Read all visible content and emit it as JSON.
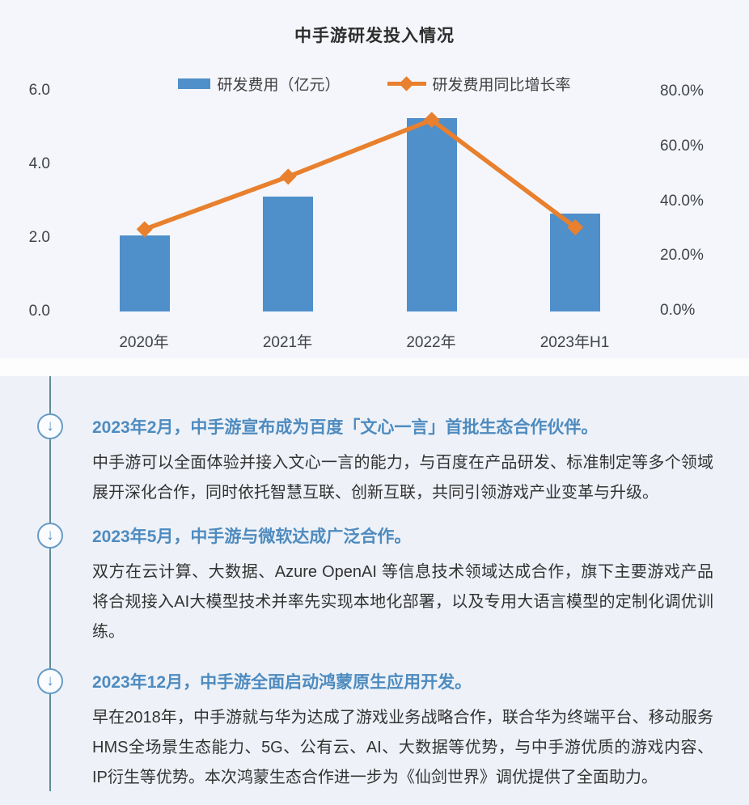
{
  "chart_data": {
    "type": "bar+line",
    "title": "中手游研发投入情况",
    "categories": [
      "2020年",
      "2021年",
      "2022年",
      "2023年H1"
    ],
    "series": [
      {
        "name": "研发费用（亿元）",
        "type": "bar",
        "axis": "left",
        "values": [
          2.06,
          3.11,
          5.26,
          2.66
        ],
        "color": "#4f8fca"
      },
      {
        "name": "研发费用同比增长率",
        "type": "line",
        "axis": "right",
        "values": [
          29.7,
          48.9,
          69.6,
          30.4
        ],
        "color": "#e8802e"
      }
    ],
    "left_axis": {
      "ticks": [
        "6.0",
        "4.0",
        "2.0",
        "0.0"
      ],
      "min": 0,
      "max": 6
    },
    "right_axis": {
      "ticks": [
        "80.0%",
        "60.0%",
        "40.0%",
        "20.0%",
        "0.0%"
      ],
      "min": 0,
      "max": 80
    },
    "grid": false,
    "legend_position": "top"
  },
  "icons": {
    "arrow_down": "↓"
  },
  "timeline": {
    "items": [
      {
        "heading": "2023年2月，中手游宣布成为百度「文心一言」首批生态合作伙伴。",
        "body": "中手游可以全面体验并接入文心一言的能力，与百度在产品研发、标准制定等多个领域展开深化合作，同时依托智慧互联、创新互联，共同引领游戏产业变革与升级。"
      },
      {
        "heading": "2023年5月，中手游与微软达成广泛合作。",
        "body": "双方在云计算、大数据、Azure OpenAI 等信息技术领域达成合作，旗下主要游戏产品将合规接入AI大模型技术并率先实现本地化部署，以及专用大语言模型的定制化调优训练。"
      },
      {
        "heading": "2023年12月，中手游全面启动鸿蒙原生应用开发。",
        "body": "早在2018年，中手游就与华为达成了游戏业务战略合作，联合华为终端平台、移动服务HMS全场景生态能力、5G、公有云、AI、大数据等优势，与中手游优质的游戏内容、IP衍生等优势。本次鸿蒙生态合作进一步为《仙剑世界》调优提供了全面助力。"
      }
    ]
  }
}
